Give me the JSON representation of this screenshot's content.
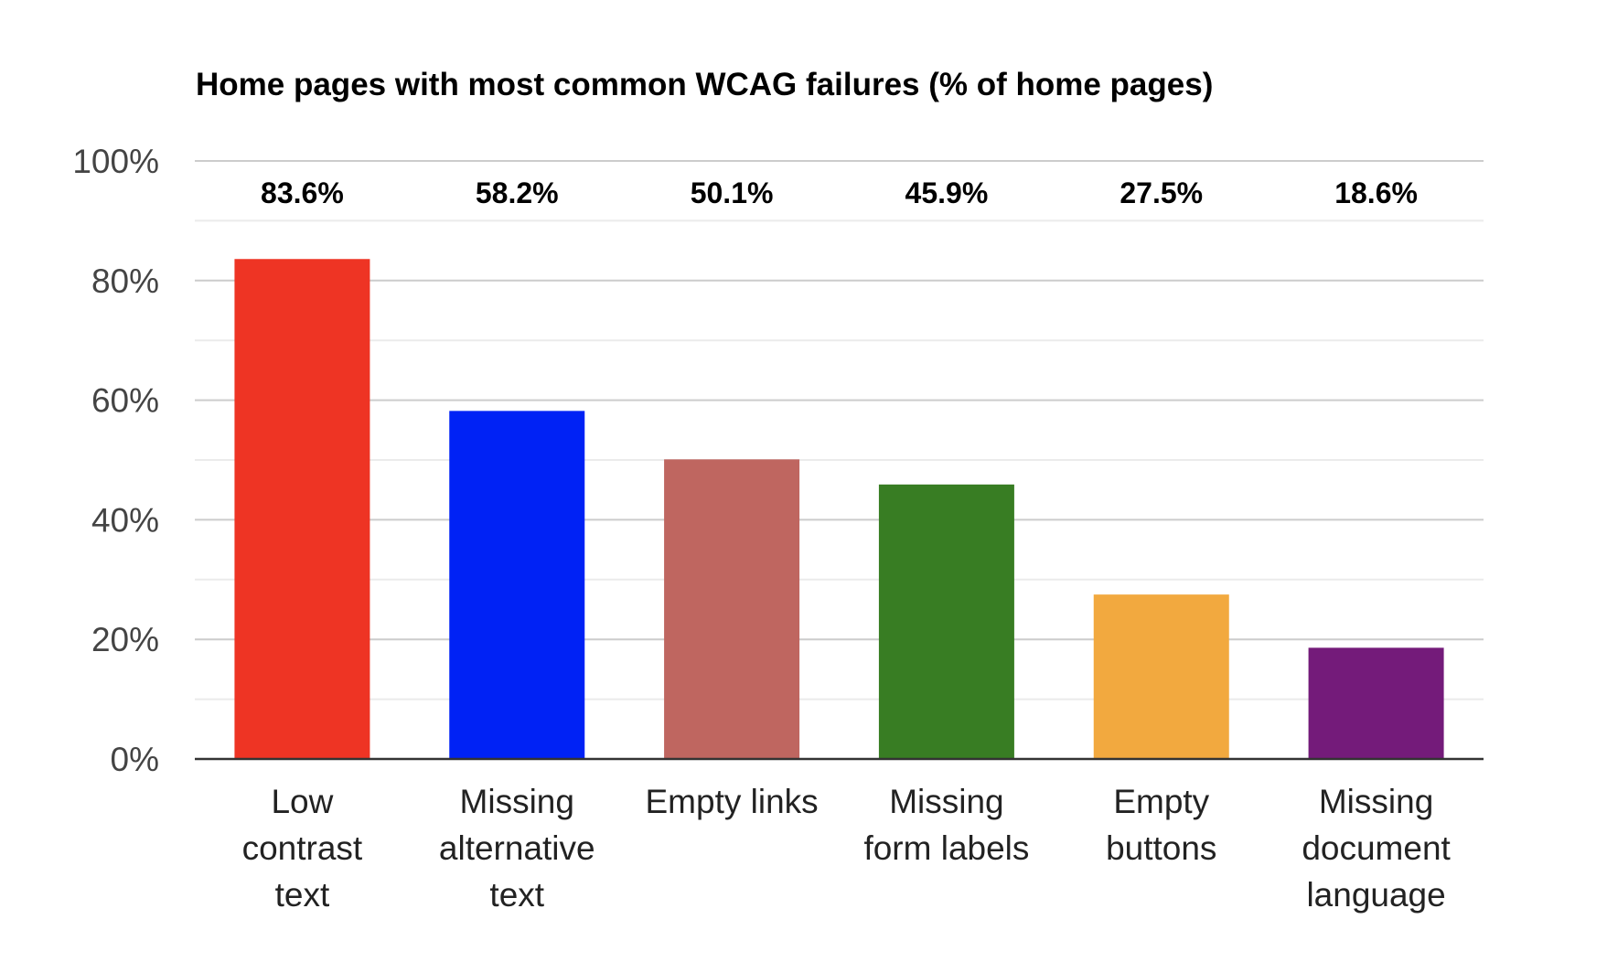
{
  "chart_data": {
    "type": "bar",
    "title": "Home pages with most common WCAG failures (% of home pages)",
    "xlabel": "",
    "ylabel": "",
    "categories": [
      [
        "Low",
        "contrast",
        "text"
      ],
      [
        "Missing",
        "alternative",
        "text"
      ],
      [
        "Empty links"
      ],
      [
        "Missing",
        "form labels"
      ],
      [
        "Empty",
        "buttons"
      ],
      [
        "Missing",
        "document",
        "language"
      ]
    ],
    "values": [
      83.6,
      58.2,
      50.1,
      45.9,
      27.5,
      18.6
    ],
    "data_labels": [
      "83.6%",
      "58.2%",
      "50.1%",
      "45.9%",
      "27.5%",
      "18.6%"
    ],
    "colors": [
      "#ee3424",
      "#0022f5",
      "#bf6660",
      "#387d23",
      "#f2a93f",
      "#741b7a"
    ],
    "ylim": [
      0,
      100
    ],
    "y_ticks": [
      0,
      20,
      40,
      60,
      80,
      100
    ],
    "y_tick_labels": [
      "0%",
      "20%",
      "40%",
      "60%",
      "80%",
      "100%"
    ],
    "grid": true,
    "minor_grid": true,
    "legend": "none"
  }
}
